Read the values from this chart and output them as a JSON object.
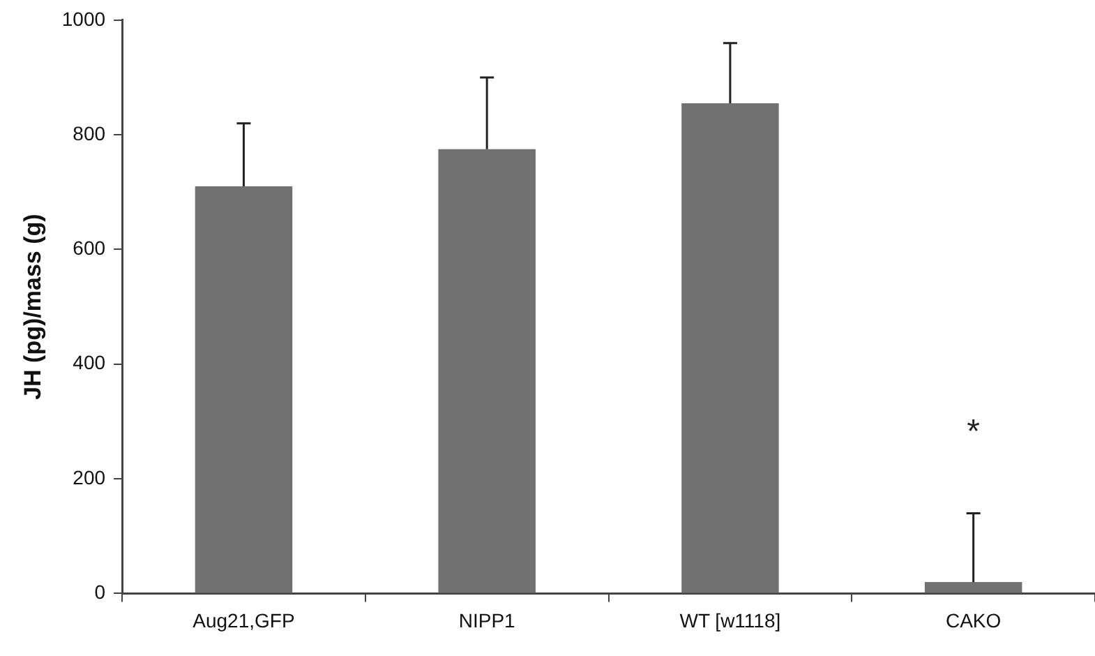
{
  "chart_data": {
    "type": "bar",
    "ylabel": "JH (pg)/mass (g)",
    "categories": [
      "Aug21,GFP",
      "NIPP1",
      "WT [w1118]",
      "CAKO"
    ],
    "values": [
      710,
      775,
      855,
      20
    ],
    "errors": [
      [
        710,
        820
      ],
      [
        775,
        900
      ],
      [
        855,
        960
      ],
      [
        20,
        140
      ]
    ],
    "color": "#717171",
    "ylim": [
      0,
      1000
    ],
    "yticks": [
      0,
      200,
      400,
      600,
      800,
      1000
    ],
    "grid": false,
    "legend": false,
    "annotations": [
      "*"
    ]
  }
}
